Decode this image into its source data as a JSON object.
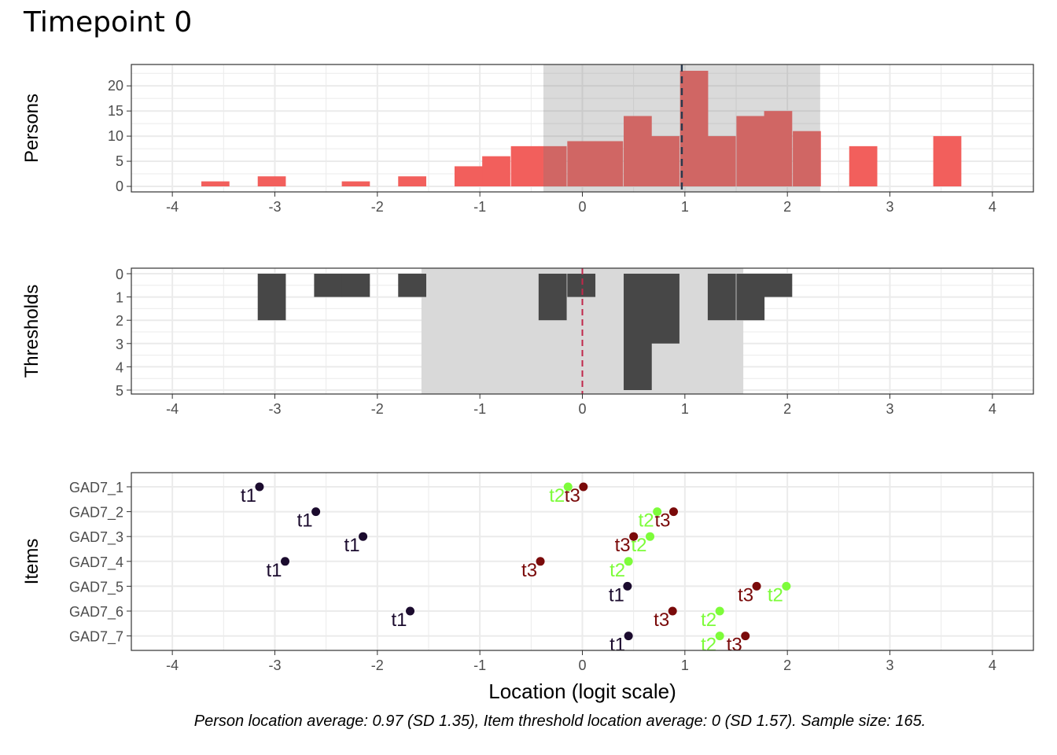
{
  "title": "Timepoint 0",
  "caption": "Person location average: 0.97 (SD 1.35), Item threshold location average: 0 (SD 1.57). Sample size: 165.",
  "colors": {
    "person_bar": "#f25f5c",
    "person_bar_in_band": "#d15556",
    "threshold_bar": "#474747",
    "band": "#d9d9d9",
    "person_mean_line": "#2a3a4e",
    "threshold_mean_line": "#c0274a",
    "t1": "#1b0b2e",
    "t2": "#7dfc3a",
    "t3": "#7a0a0a"
  },
  "chart_data": [
    {
      "type": "bar",
      "panel": "persons",
      "ylabel": "Persons",
      "xlim": [
        -4.4,
        4.4
      ],
      "ylim": [
        0,
        23
      ],
      "x_ticks": [
        "-4",
        "-3",
        "-2",
        "-1",
        "0",
        "1",
        "2",
        "3",
        "4"
      ],
      "y_ticks": [
        "0",
        "5",
        "10",
        "15",
        "20"
      ],
      "mean": 0.97,
      "sd": 1.35,
      "bins": [
        {
          "x": -3.58,
          "count": 1
        },
        {
          "x": -3.03,
          "count": 2
        },
        {
          "x": -2.21,
          "count": 1
        },
        {
          "x": -1.66,
          "count": 2
        },
        {
          "x": -1.11,
          "count": 4
        },
        {
          "x": -0.84,
          "count": 6
        },
        {
          "x": -0.56,
          "count": 8
        },
        {
          "x": -0.29,
          "count": 8
        },
        {
          "x": -0.01,
          "count": 9
        },
        {
          "x": 0.26,
          "count": 9
        },
        {
          "x": 0.54,
          "count": 14
        },
        {
          "x": 0.81,
          "count": 10
        },
        {
          "x": 1.09,
          "count": 23
        },
        {
          "x": 1.36,
          "count": 10
        },
        {
          "x": 1.64,
          "count": 14
        },
        {
          "x": 1.91,
          "count": 15
        },
        {
          "x": 2.19,
          "count": 11
        },
        {
          "x": 2.74,
          "count": 8
        },
        {
          "x": 3.56,
          "count": 10
        }
      ]
    },
    {
      "type": "bar",
      "panel": "thresholds",
      "ylabel": "Thresholds",
      "xlim": [
        -4.4,
        4.4
      ],
      "ylim": [
        0,
        5
      ],
      "y_ticks": [
        "0",
        "1",
        "2",
        "3",
        "4",
        "5"
      ],
      "x_ticks": [
        "-4",
        "-3",
        "-2",
        "-1",
        "0",
        "1",
        "2",
        "3",
        "4"
      ],
      "mean": 0,
      "sd": 1.57,
      "bins": [
        {
          "x": -3.03,
          "count": 2
        },
        {
          "x": -2.48,
          "count": 1
        },
        {
          "x": -2.21,
          "count": 1
        },
        {
          "x": -1.66,
          "count": 1
        },
        {
          "x": -0.29,
          "count": 2
        },
        {
          "x": -0.01,
          "count": 1
        },
        {
          "x": 0.54,
          "count": 5
        },
        {
          "x": 0.81,
          "count": 3
        },
        {
          "x": 1.36,
          "count": 2
        },
        {
          "x": 1.64,
          "count": 2
        },
        {
          "x": 1.91,
          "count": 1
        }
      ]
    },
    {
      "type": "scatter",
      "panel": "items",
      "ylabel": "Items",
      "xlabel": "Location (logit scale)",
      "xlim": [
        -4.4,
        4.4
      ],
      "x_ticks": [
        "-4",
        "-3",
        "-2",
        "-1",
        "0",
        "1",
        "2",
        "3",
        "4"
      ],
      "items": [
        "GAD7_1",
        "GAD7_2",
        "GAD7_3",
        "GAD7_4",
        "GAD7_5",
        "GAD7_6",
        "GAD7_7"
      ],
      "series": [
        {
          "name": "t1",
          "values": [
            -3.15,
            -2.6,
            -2.14,
            -2.9,
            0.44,
            -1.68,
            0.45
          ]
        },
        {
          "name": "t2",
          "values": [
            -0.14,
            0.73,
            0.66,
            0.45,
            1.99,
            1.34,
            1.34
          ]
        },
        {
          "name": "t3",
          "values": [
            0.01,
            0.89,
            0.5,
            -0.41,
            1.7,
            0.88,
            1.59
          ]
        }
      ]
    }
  ]
}
